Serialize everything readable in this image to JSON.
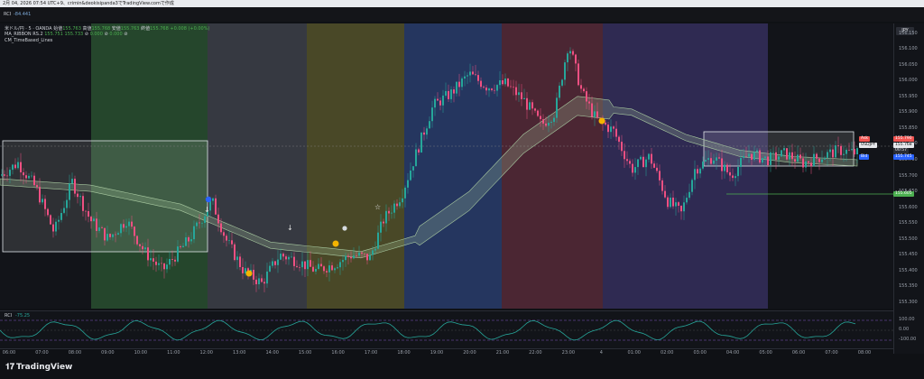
{
  "header": {
    "caption": "2月 04, 2026 07:54 UTC+9、crimin&deokisipanda3でTradingView.comで作成"
  },
  "rci_top": {
    "label": "RCI",
    "value": "-84.441"
  },
  "legend": {
    "symbol": "米ドル/円 · 5 · OANDA",
    "o_label": "始値",
    "o": "155.763",
    "h_label": "高値",
    "h": "155.768",
    "l_label": "安値",
    "l": "155.763",
    "c_label": "終値",
    "c": "155.768",
    "change": "+0.008 (+0.00%)",
    "ribbon_label": "MA_RIBBON RS.2",
    "ribbon_v1": "155.751",
    "ribbon_v2": "155.733",
    "ribbon_v3": "0.000",
    "ribbon_v4": "0.000",
    "timebased_label": "CM_TimeBased_Lines"
  },
  "currency_badge": "JPY",
  "price_ticks": [
    "156.150",
    "156.100",
    "156.050",
    "156.000",
    "155.950",
    "155.900",
    "155.850",
    "155.800",
    "155.750",
    "155.700",
    "155.650",
    "155.600",
    "155.550",
    "155.500",
    "155.450",
    "155.400",
    "155.350",
    "155.300"
  ],
  "price_tags": {
    "ask_label": "Ask",
    "ask": "155.790",
    "symbol": "USDJPY",
    "last": "155.768",
    "countdown": "00:57",
    "bid_label": "Bid",
    "bid": "155.745",
    "level": "155.605"
  },
  "rci_panel": {
    "label": "RCI",
    "value": "-75.25",
    "ticks": [
      "100.00",
      "0.00",
      "-100.00"
    ]
  },
  "time_ticks": [
    "06:00",
    "07:00",
    "08:00",
    "09:00",
    "10:00",
    "11:00",
    "12:00",
    "13:00",
    "14:00",
    "15:00",
    "16:00",
    "17:00",
    "18:00",
    "19:00",
    "20:00",
    "21:00",
    "22:00",
    "23:00",
    "4",
    "01:00",
    "02:00",
    "03:00",
    "04:00",
    "05:00",
    "06:00",
    "07:00",
    "08:00"
  ],
  "brand": "TradingView",
  "colors": {
    "up": "#26a69a",
    "down": "#ef5082",
    "session_green": "#2e5b35",
    "session_gray": "#4a4d57",
    "session_olive": "#5c5a2c",
    "session_blue": "#2b3f70",
    "session_maroon": "#5a2a3a",
    "session_purple": "#3a3266",
    "ribbon": "#a8c9a0",
    "box": "#e8eef0",
    "level_line": "#4caf50"
  },
  "chart_data": {
    "type": "candlestick",
    "instrument": "USDJPY",
    "timeframe": "5",
    "price_range": [
      155.28,
      156.18
    ],
    "anchors": [
      [
        0,
        155.7
      ],
      [
        20,
        155.74
      ],
      [
        40,
        155.66
      ],
      [
        60,
        155.52
      ],
      [
        80,
        155.68
      ],
      [
        100,
        155.56
      ],
      [
        120,
        155.5
      ],
      [
        140,
        155.56
      ],
      [
        160,
        155.46
      ],
      [
        180,
        155.4
      ],
      [
        210,
        155.5
      ],
      [
        235,
        155.62
      ],
      [
        250,
        155.5
      ],
      [
        270,
        155.4
      ],
      [
        290,
        155.36
      ],
      [
        310,
        155.45
      ],
      [
        330,
        155.43
      ],
      [
        350,
        155.4
      ],
      [
        370,
        155.42
      ],
      [
        390,
        155.45
      ],
      [
        410,
        155.44
      ],
      [
        425,
        155.56
      ],
      [
        445,
        155.64
      ],
      [
        465,
        155.8
      ],
      [
        480,
        155.92
      ],
      [
        500,
        155.96
      ],
      [
        520,
        156.02
      ],
      [
        540,
        155.98
      ],
      [
        560,
        155.99
      ],
      [
        580,
        155.94
      ],
      [
        600,
        155.86
      ],
      [
        615,
        155.9
      ],
      [
        630,
        156.12
      ],
      [
        645,
        155.96
      ],
      [
        660,
        155.88
      ],
      [
        680,
        155.84
      ],
      [
        700,
        155.72
      ],
      [
        720,
        155.76
      ],
      [
        740,
        155.62
      ],
      [
        755,
        155.58
      ],
      [
        770,
        155.72
      ],
      [
        790,
        155.76
      ],
      [
        810,
        155.7
      ],
      [
        830,
        155.77
      ],
      [
        850,
        155.75
      ],
      [
        870,
        155.77
      ],
      [
        890,
        155.74
      ],
      [
        910,
        155.76
      ],
      [
        930,
        155.78
      ],
      [
        950,
        155.77
      ]
    ],
    "ribbon": [
      [
        0,
        155.68
      ],
      [
        100,
        155.66
      ],
      [
        200,
        155.6
      ],
      [
        300,
        155.48
      ],
      [
        400,
        155.45
      ],
      [
        460,
        155.5
      ],
      [
        520,
        155.62
      ],
      [
        580,
        155.8
      ],
      [
        640,
        155.92
      ],
      [
        700,
        155.9
      ],
      [
        760,
        155.82
      ],
      [
        820,
        155.77
      ],
      [
        880,
        155.75
      ],
      [
        950,
        155.74
      ]
    ]
  }
}
